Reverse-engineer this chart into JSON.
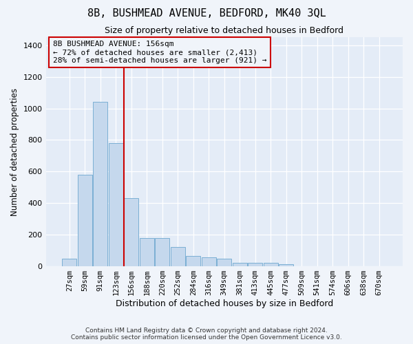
{
  "title": "8B, BUSHMEAD AVENUE, BEDFORD, MK40 3QL",
  "subtitle": "Size of property relative to detached houses in Bedford",
  "xlabel": "Distribution of detached houses by size in Bedford",
  "ylabel": "Number of detached properties",
  "categories": [
    "27sqm",
    "59sqm",
    "91sqm",
    "123sqm",
    "156sqm",
    "188sqm",
    "220sqm",
    "252sqm",
    "284sqm",
    "316sqm",
    "349sqm",
    "381sqm",
    "413sqm",
    "445sqm",
    "477sqm",
    "509sqm",
    "541sqm",
    "574sqm",
    "606sqm",
    "638sqm",
    "670sqm"
  ],
  "values": [
    47,
    578,
    1040,
    780,
    430,
    178,
    175,
    120,
    63,
    55,
    48,
    22,
    20,
    18,
    10,
    0,
    0,
    0,
    0,
    0,
    0
  ],
  "bar_color": "#c5d8ed",
  "bar_edgecolor": "#7bafd4",
  "vline_index": 3,
  "vline_color": "#cc0000",
  "annotation_text": "8B BUSHMEAD AVENUE: 156sqm\n← 72% of detached houses are smaller (2,413)\n28% of semi-detached houses are larger (921) →",
  "annotation_box_edgecolor": "#cc0000",
  "ylim": [
    0,
    1450
  ],
  "yticks": [
    0,
    200,
    400,
    600,
    800,
    1000,
    1200,
    1400
  ],
  "footnote": "Contains HM Land Registry data © Crown copyright and database right 2024.\nContains public sector information licensed under the Open Government Licence v3.0.",
  "background_color": "#f0f4fa",
  "plot_background": "#e4ecf7"
}
